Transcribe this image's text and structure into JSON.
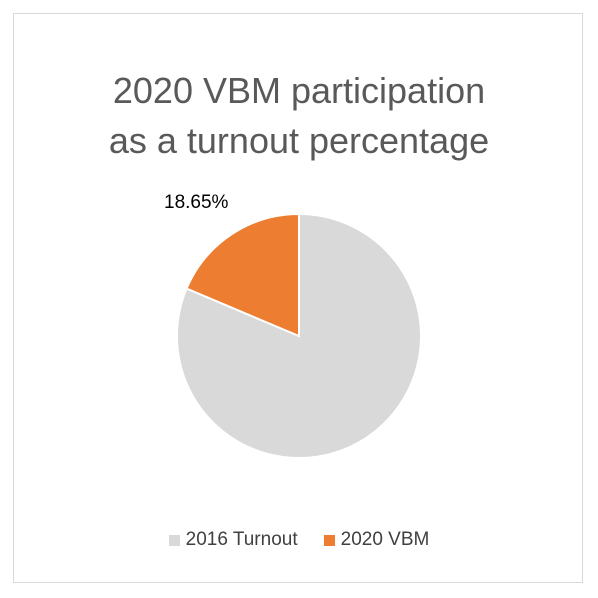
{
  "chart_data": {
    "type": "pie",
    "title": "2020 VBM participation\nas a turnout percentage",
    "categories": [
      "2016 Turnout",
      "2020 VBM"
    ],
    "values": [
      81.35,
      18.65
    ],
    "colors": [
      "#d9d9d9",
      "#ed7d31"
    ],
    "data_labels": [
      "",
      "18.65%"
    ],
    "legend_position": "bottom"
  }
}
